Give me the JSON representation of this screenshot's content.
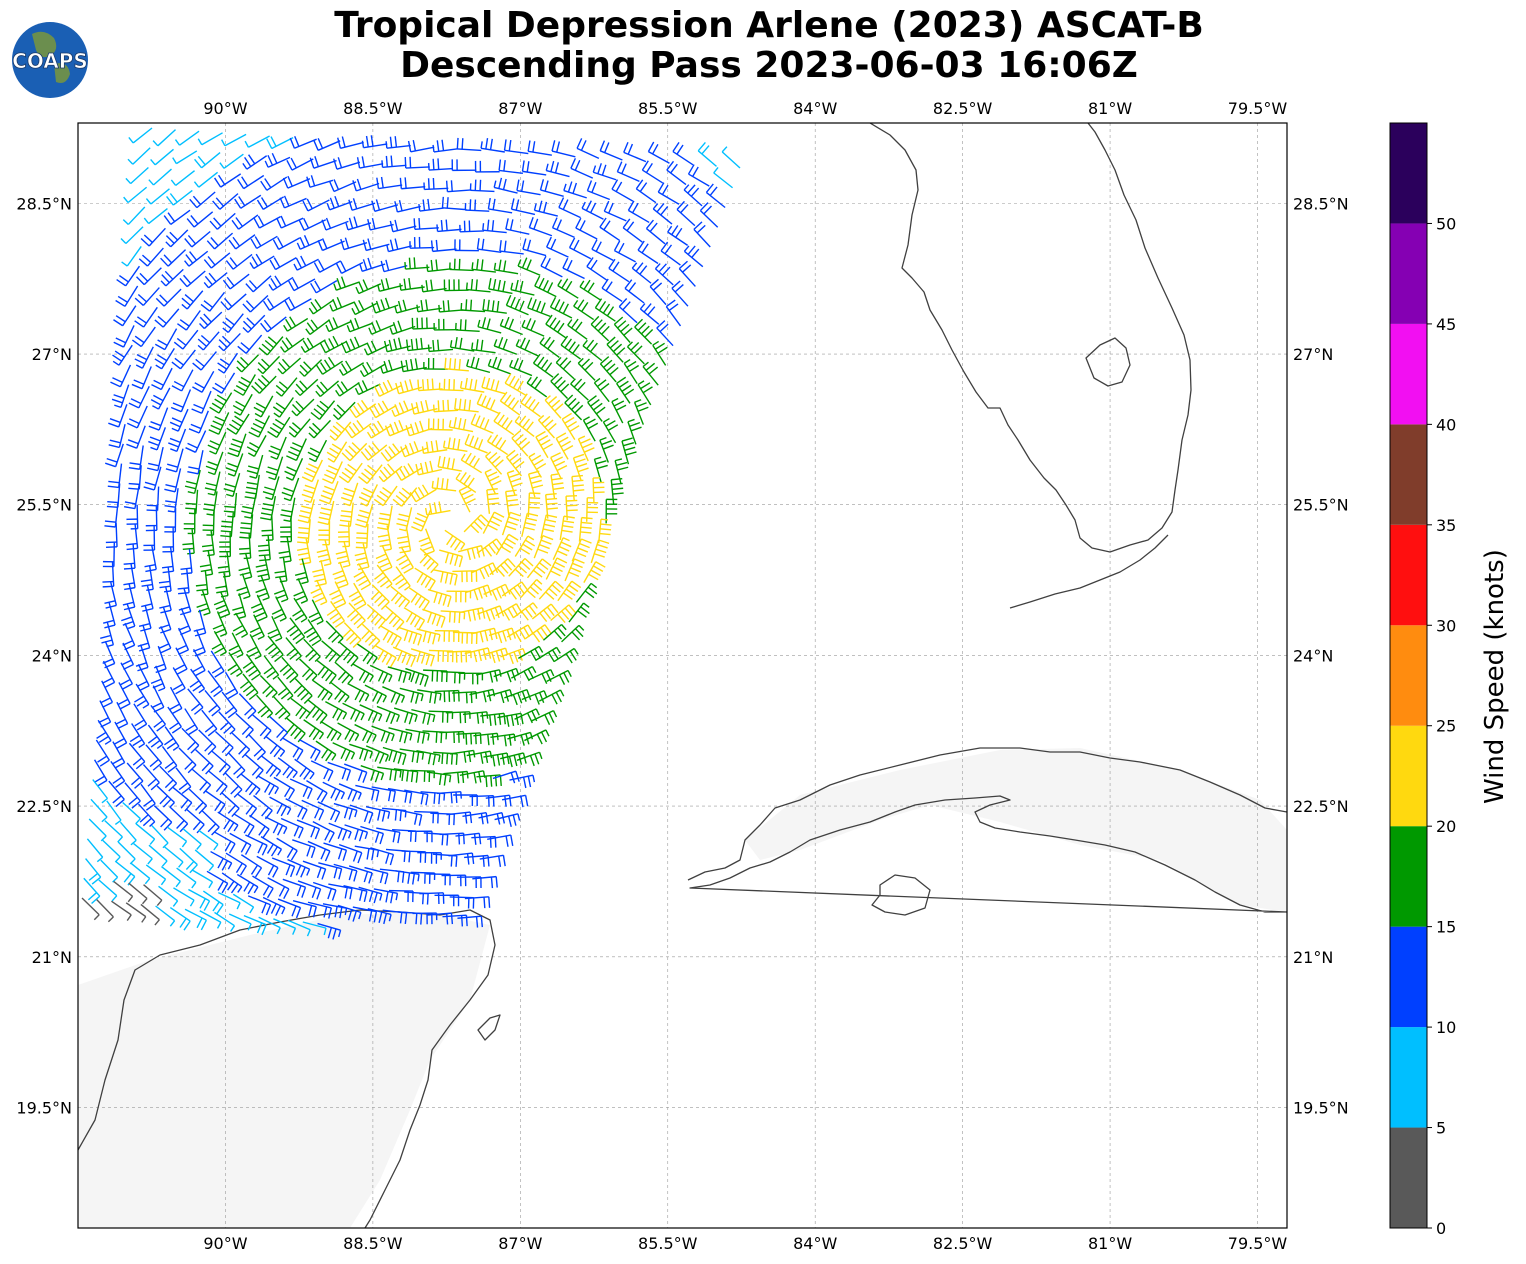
{
  "title": {
    "line1": "Tropical Depression Arlene (2023) ASCAT-B",
    "line2": "Descending Pass 2023-06-03 16:06Z"
  },
  "logo": {
    "text": "COAPS",
    "icon": "globe-icon"
  },
  "map": {
    "lon_range": [
      -91.5,
      -79.2
    ],
    "lat_range": [
      18.3,
      29.3
    ],
    "lon_ticks": [
      {
        "value": -90,
        "label": "90°W"
      },
      {
        "value": -88.5,
        "label": "88.5°W"
      },
      {
        "value": -87,
        "label": "87°W"
      },
      {
        "value": -85.5,
        "label": "85.5°W"
      },
      {
        "value": -84,
        "label": "84°W"
      },
      {
        "value": -82.5,
        "label": "82.5°W"
      },
      {
        "value": -81,
        "label": "81°W"
      },
      {
        "value": -79.5,
        "label": "79.5°W"
      }
    ],
    "lat_ticks": [
      {
        "value": 28.5,
        "label": "28.5°N"
      },
      {
        "value": 27,
        "label": "27°N"
      },
      {
        "value": 25.5,
        "label": "25.5°N"
      },
      {
        "value": 24,
        "label": "24°N"
      },
      {
        "value": 22.5,
        "label": "22.5°N"
      },
      {
        "value": 21,
        "label": "21°N"
      },
      {
        "value": 19.5,
        "label": "19.5°N"
      }
    ],
    "grid": true
  },
  "colorbar": {
    "label": "Wind Speed (knots)",
    "bins": [
      {
        "min": 0,
        "max": 5,
        "color": "#595959"
      },
      {
        "min": 5,
        "max": 10,
        "color": "#00bfff"
      },
      {
        "min": 10,
        "max": 15,
        "color": "#0040ff"
      },
      {
        "min": 15,
        "max": 20,
        "color": "#009900"
      },
      {
        "min": 20,
        "max": 25,
        "color": "#ffd90f"
      },
      {
        "min": 25,
        "max": 30,
        "color": "#ff8c0f"
      },
      {
        "min": 30,
        "max": 35,
        "color": "#ff0f0f"
      },
      {
        "min": 35,
        "max": 40,
        "color": "#803d2b"
      },
      {
        "min": 40,
        "max": 45,
        "color": "#f20ff2"
      },
      {
        "min": 45,
        "max": 50,
        "color": "#8500b3"
      },
      {
        "min": 50,
        "max": 55,
        "color": "#2b005c"
      }
    ],
    "ticks": [
      "0",
      "5",
      "10",
      "15",
      "20",
      "25",
      "30",
      "35",
      "40",
      "45",
      "50"
    ]
  }
}
